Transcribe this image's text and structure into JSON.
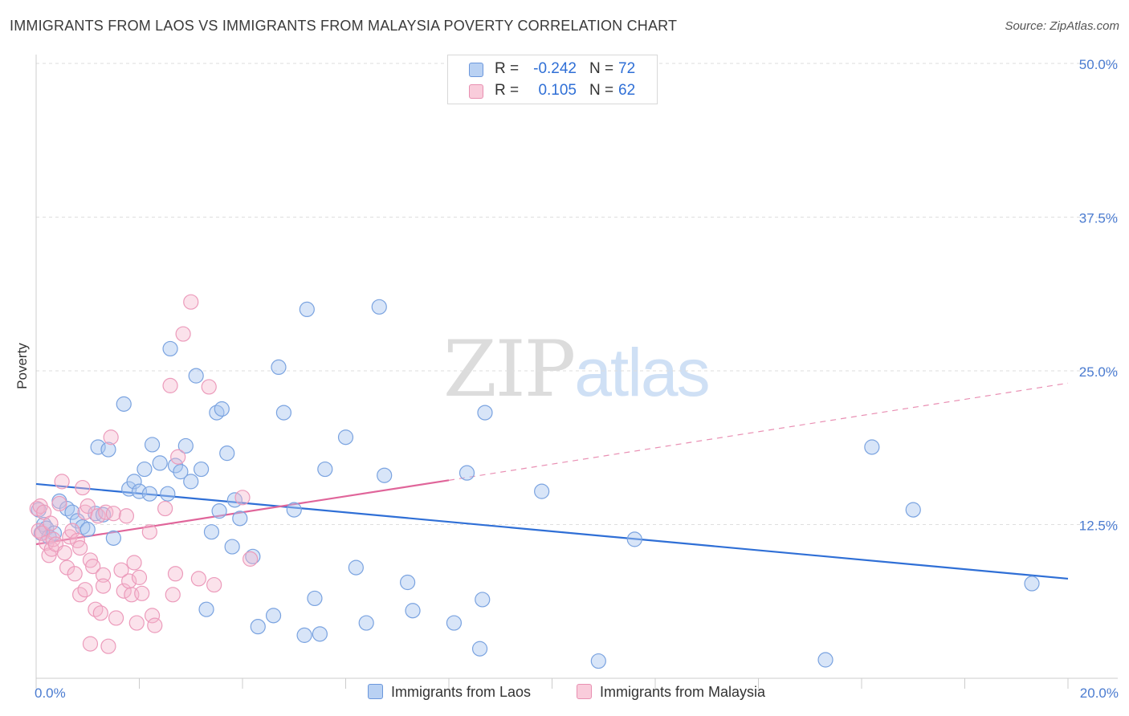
{
  "title": "IMMIGRANTS FROM LAOS VS IMMIGRANTS FROM MALAYSIA POVERTY CORRELATION CHART",
  "source": "Source: ZipAtlas.com",
  "watermark": {
    "zip": "ZIP",
    "atlas": "atlas"
  },
  "colors": {
    "laos": "#2f6fd6",
    "laos_fill": "#a9c6ef",
    "malaysia": "#e0659a",
    "malaysia_fill": "#f5b7cd"
  },
  "legend": {
    "laos": {
      "r_label": "R =",
      "r_value": "-0.242",
      "n_label": "N =",
      "n_value": "72",
      "name": "Immigrants from Laos"
    },
    "malaysia": {
      "r_label": "R =",
      "r_value": "0.105",
      "n_label": "N =",
      "n_value": "62",
      "name": "Immigrants from Malaysia"
    }
  },
  "chart_data": {
    "type": "scatter",
    "title": "IMMIGRANTS FROM LAOS VS IMMIGRANTS FROM MALAYSIA POVERTY CORRELATION CHART",
    "xlabel": "",
    "ylabel": "Poverty",
    "xlim": [
      0,
      20
    ],
    "ylim": [
      0,
      50
    ],
    "x_tick_labels": [
      "0.0%",
      "20.0%"
    ],
    "y_ticks": [
      12.5,
      25.0,
      37.5,
      50.0
    ],
    "y_tick_labels": [
      "12.5%",
      "25.0%",
      "37.5%",
      "50.0%"
    ],
    "series": [
      {
        "name": "Immigrants from Laos",
        "trend": {
          "x0": 0,
          "y0": 15.8,
          "x1": 20,
          "y1": 8.1
        },
        "points": [
          [
            0.05,
            13.7
          ],
          [
            0.1,
            11.8
          ],
          [
            0.15,
            12.5
          ],
          [
            0.2,
            12.2
          ],
          [
            0.25,
            11.5
          ],
          [
            0.35,
            11.8
          ],
          [
            0.45,
            14.4
          ],
          [
            0.6,
            13.8
          ],
          [
            0.7,
            13.5
          ],
          [
            0.8,
            12.8
          ],
          [
            0.9,
            12.3
          ],
          [
            1.0,
            12.1
          ],
          [
            1.15,
            13.4
          ],
          [
            1.3,
            13.3
          ],
          [
            1.2,
            18.8
          ],
          [
            1.4,
            18.6
          ],
          [
            1.5,
            11.4
          ],
          [
            1.7,
            22.3
          ],
          [
            1.8,
            15.4
          ],
          [
            1.9,
            16.0
          ],
          [
            2.0,
            15.2
          ],
          [
            2.1,
            17.0
          ],
          [
            2.2,
            15.0
          ],
          [
            2.25,
            19.0
          ],
          [
            2.4,
            17.5
          ],
          [
            2.55,
            15.0
          ],
          [
            2.6,
            26.8
          ],
          [
            2.7,
            17.3
          ],
          [
            2.8,
            16.8
          ],
          [
            2.9,
            18.9
          ],
          [
            3.0,
            16.0
          ],
          [
            3.1,
            24.6
          ],
          [
            3.2,
            17.0
          ],
          [
            3.3,
            5.6
          ],
          [
            3.4,
            11.9
          ],
          [
            3.5,
            21.6
          ],
          [
            3.55,
            13.6
          ],
          [
            3.6,
            21.9
          ],
          [
            3.7,
            18.3
          ],
          [
            3.85,
            14.5
          ],
          [
            3.8,
            10.7
          ],
          [
            3.95,
            13.0
          ],
          [
            4.2,
            9.9
          ],
          [
            4.3,
            4.2
          ],
          [
            4.6,
            5.1
          ],
          [
            4.7,
            25.3
          ],
          [
            4.8,
            21.6
          ],
          [
            5.0,
            13.7
          ],
          [
            5.2,
            3.5
          ],
          [
            5.25,
            30.0
          ],
          [
            5.4,
            6.5
          ],
          [
            5.5,
            3.6
          ],
          [
            5.6,
            17.0
          ],
          [
            6.0,
            19.6
          ],
          [
            6.2,
            9.0
          ],
          [
            6.4,
            4.5
          ],
          [
            6.65,
            30.2
          ],
          [
            6.75,
            16.5
          ],
          [
            7.2,
            7.8
          ],
          [
            7.3,
            5.5
          ],
          [
            8.1,
            4.5
          ],
          [
            8.35,
            16.7
          ],
          [
            8.6,
            2.4
          ],
          [
            8.7,
            21.6
          ],
          [
            8.65,
            6.4
          ],
          [
            9.8,
            15.2
          ],
          [
            10.9,
            1.4
          ],
          [
            11.6,
            11.3
          ],
          [
            15.3,
            1.5
          ],
          [
            16.2,
            18.8
          ],
          [
            17.0,
            13.7
          ],
          [
            19.3,
            7.7
          ]
        ]
      },
      {
        "name": "Immigrants from Malaysia",
        "trend": {
          "x0": 0,
          "y0": 10.9,
          "x1": 8,
          "y1": 16.1,
          "dash_to_x": 20,
          "dash_to_y": 24.0
        },
        "points": [
          [
            0.02,
            13.8
          ],
          [
            0.05,
            12.0
          ],
          [
            0.08,
            14.0
          ],
          [
            0.12,
            11.8
          ],
          [
            0.15,
            13.5
          ],
          [
            0.2,
            11.0
          ],
          [
            0.25,
            10.0
          ],
          [
            0.28,
            12.6
          ],
          [
            0.3,
            10.5
          ],
          [
            0.33,
            11.3
          ],
          [
            0.38,
            10.9
          ],
          [
            0.45,
            14.2
          ],
          [
            0.5,
            16.0
          ],
          [
            0.55,
            10.2
          ],
          [
            0.6,
            9.0
          ],
          [
            0.65,
            11.5
          ],
          [
            0.7,
            12.0
          ],
          [
            0.75,
            8.5
          ],
          [
            0.8,
            11.2
          ],
          [
            0.85,
            6.8
          ],
          [
            0.85,
            10.6
          ],
          [
            0.9,
            15.5
          ],
          [
            0.95,
            7.2
          ],
          [
            0.95,
            13.5
          ],
          [
            1.0,
            14.0
          ],
          [
            1.05,
            9.6
          ],
          [
            1.05,
            2.8
          ],
          [
            1.1,
            9.1
          ],
          [
            1.15,
            5.6
          ],
          [
            1.2,
            13.2
          ],
          [
            1.25,
            5.3
          ],
          [
            1.3,
            8.4
          ],
          [
            1.3,
            7.5
          ],
          [
            1.35,
            13.5
          ],
          [
            1.4,
            2.6
          ],
          [
            1.45,
            19.6
          ],
          [
            1.5,
            13.4
          ],
          [
            1.55,
            4.9
          ],
          [
            1.65,
            8.8
          ],
          [
            1.7,
            7.1
          ],
          [
            1.75,
            13.2
          ],
          [
            1.8,
            7.9
          ],
          [
            1.85,
            6.8
          ],
          [
            1.9,
            9.4
          ],
          [
            1.95,
            4.5
          ],
          [
            2.0,
            8.2
          ],
          [
            2.05,
            6.9
          ],
          [
            2.2,
            11.9
          ],
          [
            2.25,
            5.1
          ],
          [
            2.3,
            4.3
          ],
          [
            2.5,
            13.8
          ],
          [
            2.6,
            23.8
          ],
          [
            2.65,
            6.8
          ],
          [
            2.7,
            8.5
          ],
          [
            2.75,
            18.0
          ],
          [
            2.85,
            28.0
          ],
          [
            3.0,
            30.6
          ],
          [
            3.15,
            8.1
          ],
          [
            3.35,
            23.7
          ],
          [
            3.45,
            7.6
          ],
          [
            4.0,
            14.7
          ],
          [
            4.15,
            9.7
          ]
        ]
      }
    ]
  }
}
